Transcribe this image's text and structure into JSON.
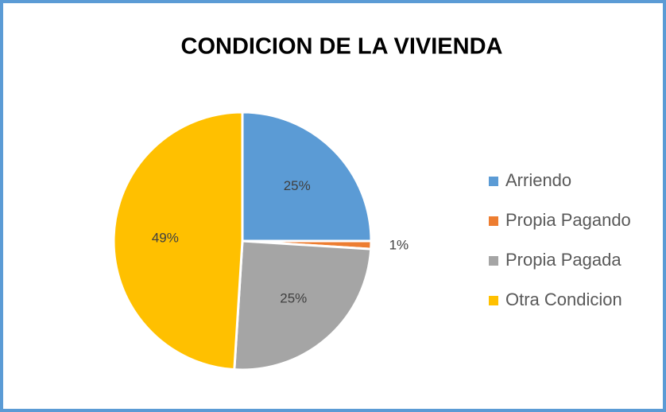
{
  "chart_data": {
    "type": "pie",
    "title": "CONDICION DE LA  VIVIENDA",
    "categories": [
      "Arriendo",
      "Propia Pagando",
      "Propia Pagada",
      "Otra Condicion"
    ],
    "values": [
      25,
      1,
      25,
      49
    ],
    "value_labels": [
      "25%",
      "1%",
      "25%",
      "49%"
    ],
    "colors": [
      "#5b9bd5",
      "#ed7d31",
      "#a5a5a5",
      "#ffc000"
    ],
    "legend": "right"
  }
}
